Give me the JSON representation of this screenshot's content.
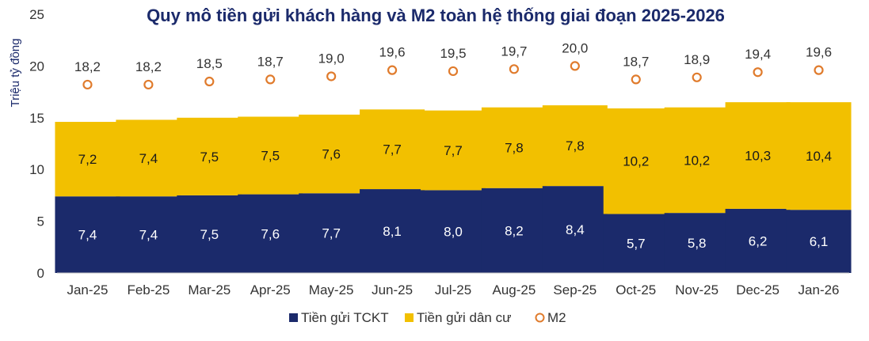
{
  "chart_data": {
    "type": "bar",
    "stacked": true,
    "title": "Quy mô tiền gửi khách hàng và M2 toàn hệ thống giai đoạn 2025-2026",
    "ylabel": "Triệu tỷ đồng",
    "xlabel": "",
    "ylim": [
      0,
      25
    ],
    "yticks": [
      "0",
      "5",
      "10",
      "15",
      "20",
      "25"
    ],
    "categories": [
      "Jan-25",
      "Feb-25",
      "Mar-25",
      "Apr-25",
      "May-25",
      "Jun-25",
      "Jul-25",
      "Aug-25",
      "Sep-25",
      "Oct-25",
      "Nov-25",
      "Dec-25",
      "Jan-26"
    ],
    "series": [
      {
        "name": "Tiền gửi TCKT",
        "kind": "bar",
        "color": "#1b2a6b",
        "values": [
          7.4,
          7.4,
          7.5,
          7.6,
          7.7,
          8.1,
          8.0,
          8.2,
          8.4,
          5.7,
          5.8,
          6.2,
          6.1
        ],
        "labels": [
          "7,4",
          "7,4",
          "7,5",
          "7,6",
          "7,7",
          "8,1",
          "8,0",
          "8,2",
          "8,4",
          "5,7",
          "5,8",
          "6,2",
          "6,1"
        ]
      },
      {
        "name": "Tiền gửi dân cư",
        "kind": "bar",
        "color": "#f2c000",
        "values": [
          7.2,
          7.4,
          7.5,
          7.5,
          7.6,
          7.7,
          7.7,
          7.8,
          7.8,
          10.2,
          10.2,
          10.3,
          10.4
        ],
        "labels": [
          "7,2",
          "7,4",
          "7,5",
          "7,5",
          "7,6",
          "7,7",
          "7,7",
          "7,8",
          "7,8",
          "10,2",
          "10,2",
          "10,3",
          "10,4"
        ]
      },
      {
        "name": "M2",
        "kind": "point",
        "color": "#e07b2c",
        "values": [
          18.2,
          18.2,
          18.5,
          18.7,
          19.0,
          19.6,
          19.5,
          19.7,
          20.0,
          18.7,
          18.9,
          19.4,
          19.6
        ],
        "labels": [
          "18,2",
          "18,2",
          "18,5",
          "18,7",
          "19,0",
          "19,6",
          "19,5",
          "19,7",
          "20,0",
          "18,7",
          "18,9",
          "19,4",
          "19,6"
        ]
      }
    ],
    "legend_position": "bottom",
    "grid": false,
    "colors": {
      "title": "#1b2a6b",
      "axis_text": "#333333",
      "axis_line": "#bfbfbf",
      "point_label": "#333333"
    }
  }
}
